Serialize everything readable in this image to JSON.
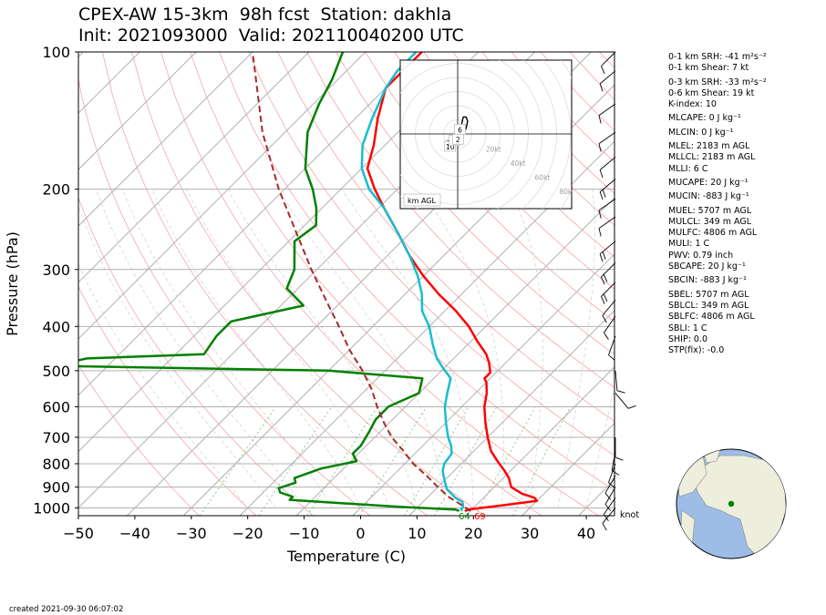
{
  "title_line1": "CPEX-AW 15-3km  98h fcst  Station: dakhla",
  "title_line2": "Init: 2021093000  Valid: 202110040200 UTC",
  "created": "created 2021-09-30 06:07:02",
  "knot_label": "knot",
  "indices": [
    {
      "label": "0-1 km SRH: -41 m²s⁻²",
      "gap": false
    },
    {
      "label": "0-1 km Shear: 7 kt",
      "gap": false
    },
    {
      "label": "0-3 km SRH: -33 m²s⁻²",
      "gap": true
    },
    {
      "label": "0-6 km Shear: 19 kt",
      "gap": false
    },
    {
      "label": "K-index: 10",
      "gap": false
    },
    {
      "label": "MLCAPE: 0 J kg⁻¹",
      "gap": true
    },
    {
      "label": "MLCIN: 0 J kg⁻¹",
      "gap": true
    },
    {
      "label": "MLEL: 2183 m AGL",
      "gap": true
    },
    {
      "label": "MLLCL: 2183 m AGL",
      "gap": false
    },
    {
      "label": "MLLI: 6 C",
      "gap": false
    },
    {
      "label": "MUCAPE: 20 J kg⁻¹",
      "gap": true
    },
    {
      "label": "MUCIN: -883 J kg⁻¹",
      "gap": true
    },
    {
      "label": "MUEL: 5707 m AGL",
      "gap": true
    },
    {
      "label": "MULCL: 349 m AGL",
      "gap": false
    },
    {
      "label": "MULFC: 4806 m AGL",
      "gap": false
    },
    {
      "label": "MULI: 1 C",
      "gap": false
    },
    {
      "label": "PWV: 0.79 inch",
      "gap": false
    },
    {
      "label": "SBCAPE: 20 J kg⁻¹",
      "gap": false
    },
    {
      "label": "SBCIN: -883 J kg⁻¹",
      "gap": true
    },
    {
      "label": "SBEL: 5707 m AGL",
      "gap": true
    },
    {
      "label": "SBLCL: 349 m AGL",
      "gap": false
    },
    {
      "label": "SBLFC: 4806 m AGL",
      "gap": false
    },
    {
      "label": "SBLI: 1 C",
      "gap": false
    },
    {
      "label": "SHIP: 0.0",
      "gap": false
    },
    {
      "label": "STP(fix): -0.0",
      "gap": false
    }
  ],
  "colors": {
    "temperature": "#ff0000",
    "dewpoint": "#008000",
    "wetbulb": "#17becf",
    "parcel": "#a52a2a",
    "isotherm": "#b0b0b0",
    "dry_adiabat": "#f4a6a6",
    "moist_adiabat": "#c8c8c8",
    "mixing_ratio": "#7ec87e",
    "land": "#eeeedd",
    "ocean": "#9dbde6"
  },
  "chart_data": {
    "type": "line",
    "subtype": "skew-t log-p",
    "xlabel": "Temperature (C)",
    "ylabel": "Pressure (hPa)",
    "xlim": [
      -50,
      45
    ],
    "ylim": [
      1040,
      100
    ],
    "yscale": "log",
    "x_ticks": [
      -50,
      -40,
      -30,
      -20,
      -10,
      0,
      10,
      20,
      30,
      40
    ],
    "y_ticks": [
      100,
      200,
      300,
      400,
      500,
      600,
      700,
      800,
      900,
      1000
    ],
    "surface_labels": {
      "dewpoint": "64",
      "temperature": "69"
    },
    "series": [
      {
        "role": "temperature",
        "points": [
          [
            1015,
            19
          ],
          [
            1005,
            20
          ],
          [
            990,
            24
          ],
          [
            965,
            30
          ],
          [
            950,
            29
          ],
          [
            930,
            26
          ],
          [
            900,
            23
          ],
          [
            860,
            21
          ],
          [
            830,
            19
          ],
          [
            790,
            16
          ],
          [
            750,
            13
          ],
          [
            700,
            10
          ],
          [
            650,
            7
          ],
          [
            600,
            4
          ],
          [
            560,
            2
          ],
          [
            530,
            0
          ],
          [
            520,
            -1
          ],
          [
            505,
            -1
          ],
          [
            480,
            -3
          ],
          [
            460,
            -5
          ],
          [
            430,
            -9
          ],
          [
            400,
            -13
          ],
          [
            370,
            -18
          ],
          [
            340,
            -24
          ],
          [
            310,
            -30
          ],
          [
            280,
            -36
          ],
          [
            250,
            -42
          ],
          [
            220,
            -49
          ],
          [
            200,
            -54
          ],
          [
            180,
            -59
          ],
          [
            160,
            -62
          ],
          [
            140,
            -66
          ],
          [
            120,
            -70
          ],
          [
            110,
            -70
          ],
          [
            100,
            -70
          ]
        ]
      },
      {
        "role": "dewpoint",
        "points": [
          [
            1015,
            18
          ],
          [
            1008,
            17
          ],
          [
            995,
            7
          ],
          [
            960,
            -14
          ],
          [
            945,
            -14
          ],
          [
            925,
            -17
          ],
          [
            905,
            -18
          ],
          [
            880,
            -16
          ],
          [
            860,
            -17
          ],
          [
            820,
            -14
          ],
          [
            790,
            -9
          ],
          [
            760,
            -11
          ],
          [
            730,
            -11
          ],
          [
            680,
            -12
          ],
          [
            640,
            -13
          ],
          [
            600,
            -13
          ],
          [
            560,
            -10
          ],
          [
            520,
            -12
          ],
          [
            500,
            -30
          ],
          [
            488,
            -80
          ],
          [
            470,
            -75
          ],
          [
            460,
            -55
          ],
          [
            420,
            -56
          ],
          [
            390,
            -56
          ],
          [
            360,
            -46
          ],
          [
            330,
            -52
          ],
          [
            300,
            -54
          ],
          [
            260,
            -59
          ],
          [
            240,
            -58
          ],
          [
            220,
            -61
          ],
          [
            200,
            -65
          ],
          [
            180,
            -70
          ],
          [
            150,
            -76
          ],
          [
            130,
            -79
          ],
          [
            115,
            -81
          ],
          [
            100,
            -84
          ]
        ]
      },
      {
        "role": "wetbulb",
        "points": [
          [
            1015,
            18.5
          ],
          [
            1005,
            18
          ],
          [
            995,
            18
          ],
          [
            970,
            17
          ],
          [
            950,
            15
          ],
          [
            910,
            12
          ],
          [
            870,
            10
          ],
          [
            830,
            8
          ],
          [
            800,
            7
          ],
          [
            760,
            6.5
          ],
          [
            730,
            5
          ],
          [
            700,
            3
          ],
          [
            650,
            0
          ],
          [
            600,
            -3
          ],
          [
            560,
            -5
          ],
          [
            520,
            -7
          ],
          [
            495,
            -10
          ],
          [
            470,
            -13
          ],
          [
            440,
            -16
          ],
          [
            400,
            -20
          ],
          [
            370,
            -24
          ],
          [
            340,
            -27
          ],
          [
            310,
            -31
          ],
          [
            280,
            -36
          ],
          [
            250,
            -42
          ],
          [
            220,
            -49
          ],
          [
            200,
            -55
          ],
          [
            180,
            -60
          ],
          [
            160,
            -64
          ],
          [
            140,
            -67
          ],
          [
            120,
            -70
          ],
          [
            110,
            -71
          ],
          [
            100,
            -71
          ]
        ]
      },
      {
        "role": "parcel",
        "points": [
          [
            1015,
            20
          ],
          [
            970,
            16
          ],
          [
            950,
            14
          ],
          [
            900,
            10
          ],
          [
            850,
            6
          ],
          [
            800,
            1.5
          ],
          [
            750,
            -2.5
          ],
          [
            700,
            -7
          ],
          [
            650,
            -11
          ],
          [
            600,
            -15
          ],
          [
            550,
            -19
          ],
          [
            500,
            -24
          ],
          [
            450,
            -30
          ],
          [
            400,
            -36
          ],
          [
            350,
            -43
          ],
          [
            300,
            -51
          ],
          [
            250,
            -60
          ],
          [
            200,
            -71
          ],
          [
            150,
            -84
          ],
          [
            100,
            -100
          ]
        ]
      }
    ],
    "hodograph": {
      "range_labels": [
        "20kt",
        "40kt",
        "60kt",
        "80kt"
      ],
      "legend": "km AGL",
      "height_labels": [
        "10",
        "1",
        "2",
        "6"
      ],
      "points": [
        [
          -9,
          -9
        ],
        [
          -7,
          -5
        ],
        [
          -4,
          -4
        ],
        [
          -2,
          -3
        ],
        [
          0,
          -1
        ],
        [
          1,
          2
        ],
        [
          2,
          6
        ],
        [
          3,
          6
        ],
        [
          3,
          8
        ],
        [
          4,
          12
        ],
        [
          6,
          12
        ],
        [
          7,
          9
        ],
        [
          6,
          4
        ],
        [
          3,
          -2
        ],
        [
          0,
          -4
        ],
        [
          0,
          -6
        ],
        [
          -3,
          -7
        ],
        [
          -5,
          -9
        ]
      ]
    },
    "globe_marker": {
      "lat": 23.7,
      "lon": -15.9
    }
  }
}
